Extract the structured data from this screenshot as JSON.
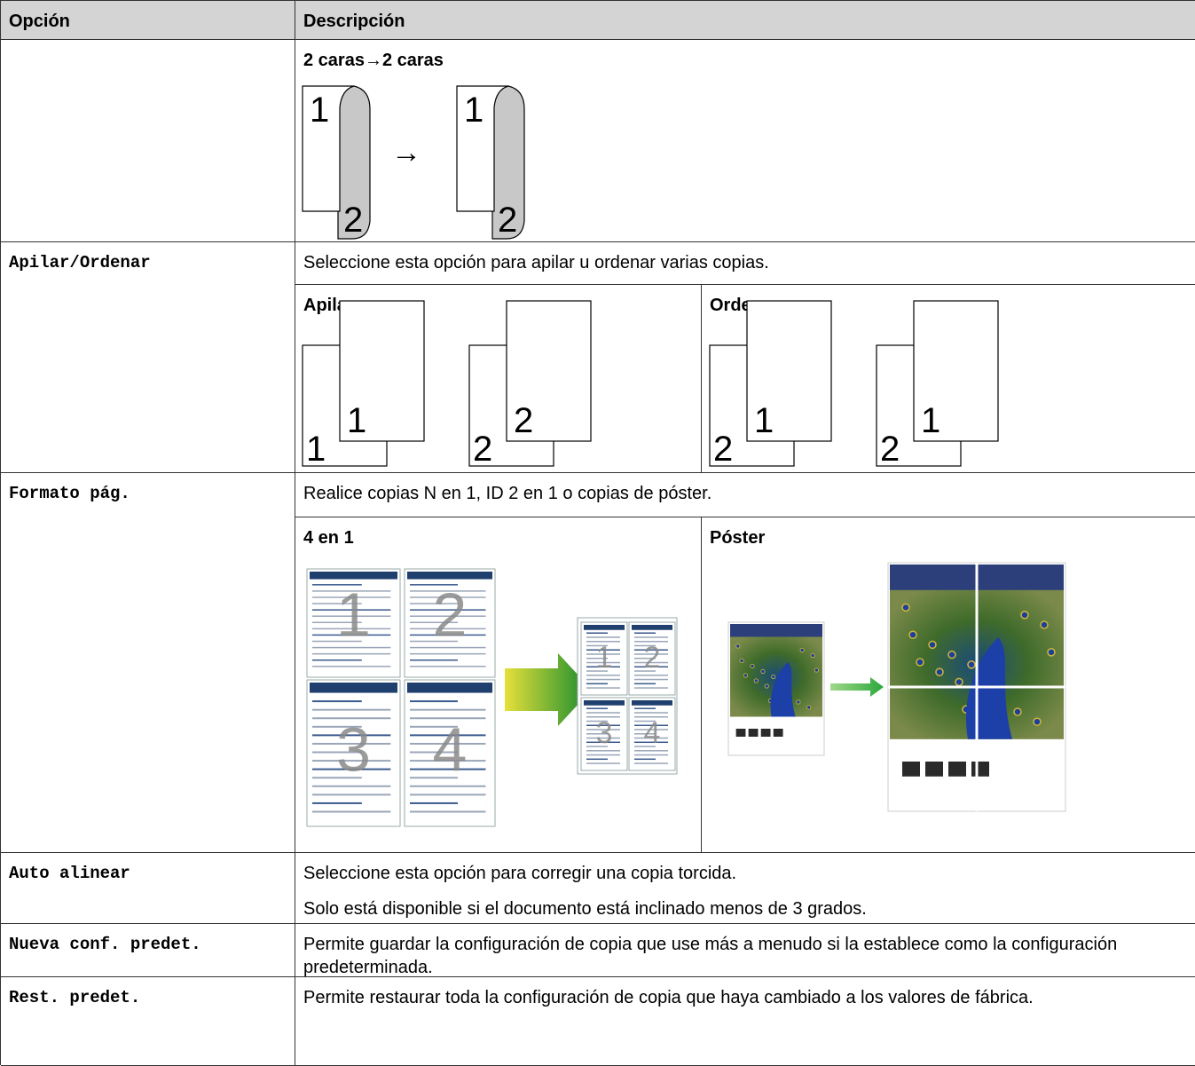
{
  "table": {
    "header": {
      "option": "Opción",
      "description": "Descripción"
    },
    "rows": [
      {
        "figure": {
          "title": "2 caras→2 caras",
          "arrow": "→",
          "pages": [
            {
              "front": "1",
              "back": "2"
            },
            {
              "front": "1",
              "back": "2"
            }
          ]
        }
      },
      {
        "option": "Apilar/Ordenar",
        "description": [
          "Seleccione esta opción para apilar u ordenar varias copias."
        ],
        "figures": [
          {
            "title": "Apilar",
            "stacks": [
              {
                "back": "1",
                "front": "1"
              },
              {
                "back": "2",
                "front": "2"
              }
            ]
          },
          {
            "title": "Ordenar",
            "stacks": [
              {
                "back": "2",
                "front": "1"
              },
              {
                "back": "2",
                "front": "1"
              }
            ]
          }
        ]
      },
      {
        "option": "Formato pág.",
        "description": [
          "Realice copias N en 1, ID 2 en 1 o copias de póster."
        ],
        "figures": [
          {
            "title": "4 en 1",
            "pages": [
              "1",
              "2",
              "3",
              "4"
            ]
          },
          {
            "title": "Póster"
          }
        ]
      },
      {
        "option": "Auto alinear",
        "description": [
          "Seleccione esta opción para corregir una copia torcida.",
          "Solo está disponible si el documento está inclinado menos de 3 grados."
        ]
      },
      {
        "option": "Nueva conf. predet.",
        "description": [
          "Permite guardar la configuración de copia que use más a menudo si la establece como la configuración predeterminada."
        ]
      },
      {
        "option": "Rest. predet.",
        "description": [
          "Permite restaurar toda la configuración de copia que haya cambiado a los valores de fábrica."
        ]
      }
    ]
  }
}
